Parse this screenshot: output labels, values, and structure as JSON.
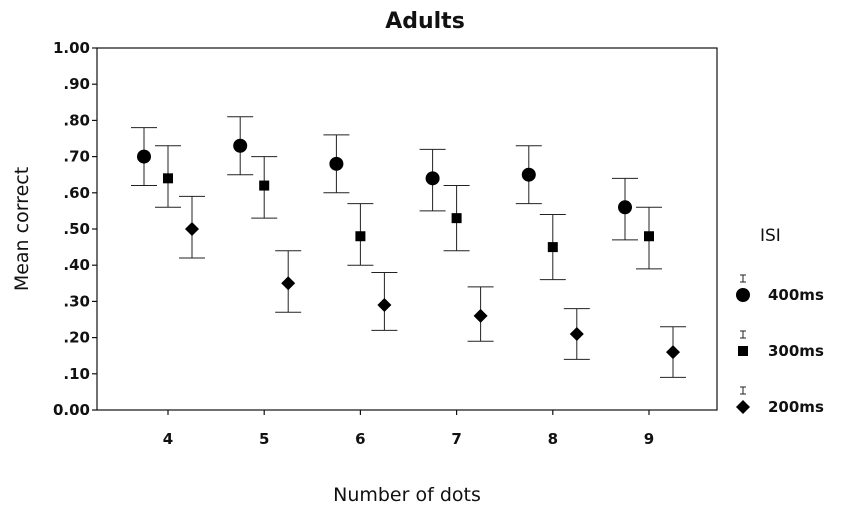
{
  "chart_data": {
    "type": "scatter",
    "title": "Adults",
    "xlabel": "Number of dots",
    "ylabel": "Mean correct",
    "categories": [
      "4",
      "5",
      "6",
      "7",
      "8",
      "9"
    ],
    "y_tick_labels": [
      "0.00",
      ".10",
      ".20",
      ".30",
      ".40",
      ".50",
      ".60",
      ".70",
      ".80",
      ".90",
      "1.00"
    ],
    "ylim": [
      0,
      1
    ],
    "grid": false,
    "error_bars": true,
    "legend": {
      "title": "ISI",
      "position": "right"
    },
    "series": [
      {
        "name": "400ms",
        "marker": "circle",
        "values": [
          0.7,
          0.73,
          0.68,
          0.64,
          0.65,
          0.56
        ],
        "lower": [
          0.62,
          0.65,
          0.6,
          0.55,
          0.57,
          0.47
        ],
        "upper": [
          0.78,
          0.81,
          0.76,
          0.72,
          0.73,
          0.64
        ]
      },
      {
        "name": "300ms",
        "marker": "square",
        "values": [
          0.64,
          0.62,
          0.48,
          0.53,
          0.45,
          0.48
        ],
        "lower": [
          0.56,
          0.53,
          0.4,
          0.44,
          0.36,
          0.39
        ],
        "upper": [
          0.73,
          0.7,
          0.57,
          0.62,
          0.54,
          0.56
        ]
      },
      {
        "name": "200ms",
        "marker": "diamond",
        "values": [
          0.5,
          0.35,
          0.29,
          0.26,
          0.21,
          0.16
        ],
        "lower": [
          0.42,
          0.27,
          0.22,
          0.19,
          0.14,
          0.09
        ],
        "upper": [
          0.59,
          0.44,
          0.38,
          0.34,
          0.28,
          0.23
        ]
      }
    ]
  }
}
